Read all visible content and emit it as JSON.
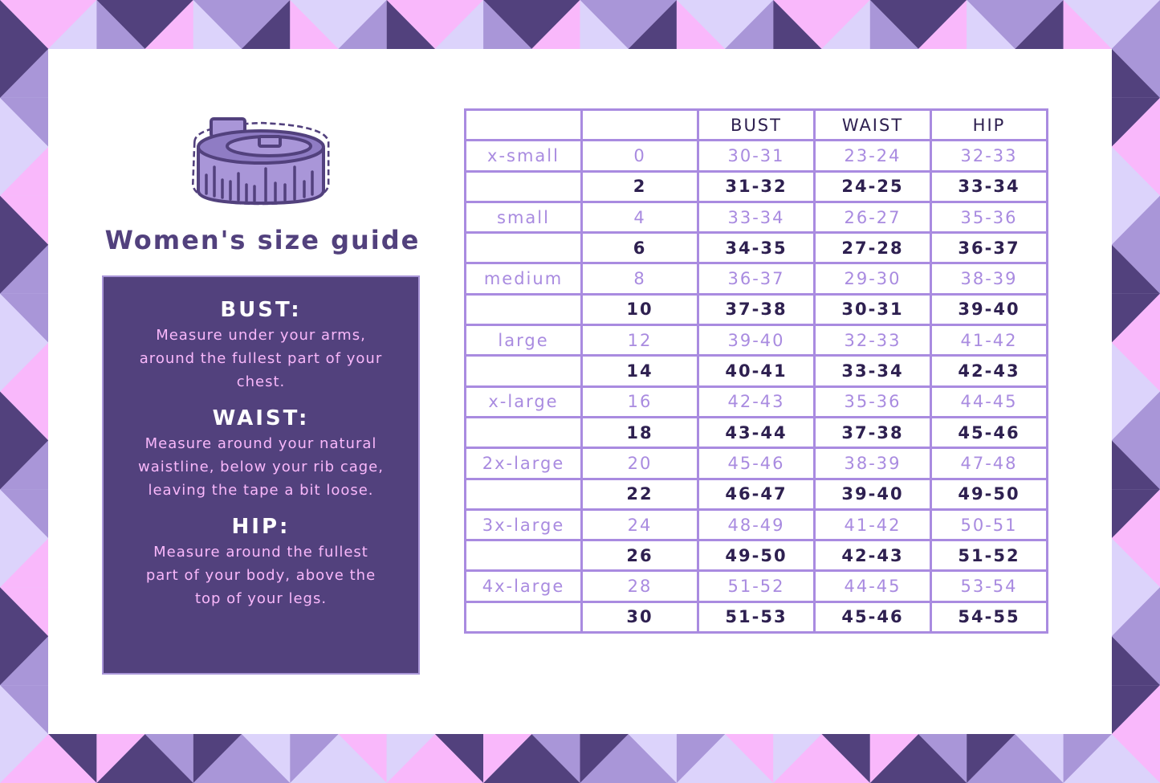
{
  "title": "Women's size guide",
  "colors": {
    "pink": "#f9b8fb",
    "lavender": "#dcd3fb",
    "mid_purple": "#a996d8",
    "dark_purple": "#52417d",
    "table_line": "#a98be0"
  },
  "icon": "measuring-tape-icon",
  "instructions": [
    {
      "heading": "BUST:",
      "text": "Measure under your arms, around the fullest part of your chest."
    },
    {
      "heading": "WAIST:",
      "text": "Measure around your natural waistline, below your rib cage, leaving the tape a bit loose."
    },
    {
      "heading": "HIP:",
      "text": "Measure around the fullest part of your body, above the top of your legs."
    }
  ],
  "table": {
    "headers": [
      "",
      "",
      "BUST",
      "WAIST",
      "HIP"
    ],
    "rows": [
      [
        "x-small",
        "0",
        "30-31",
        "23-24",
        "32-33"
      ],
      [
        "",
        "2",
        "31-32",
        "24-25",
        "33-34"
      ],
      [
        "small",
        "4",
        "33-34",
        "26-27",
        "35-36"
      ],
      [
        "",
        "6",
        "34-35",
        "27-28",
        "36-37"
      ],
      [
        "medium",
        "8",
        "36-37",
        "29-30",
        "38-39"
      ],
      [
        "",
        "10",
        "37-38",
        "30-31",
        "39-40"
      ],
      [
        "large",
        "12",
        "39-40",
        "32-33",
        "41-42"
      ],
      [
        "",
        "14",
        "40-41",
        "33-34",
        "42-43"
      ],
      [
        "x-large",
        "16",
        "42-43",
        "35-36",
        "44-45"
      ],
      [
        "",
        "18",
        "43-44",
        "37-38",
        "45-46"
      ],
      [
        "2x-large",
        "20",
        "45-46",
        "38-39",
        "47-48"
      ],
      [
        "",
        "22",
        "46-47",
        "39-40",
        "49-50"
      ],
      [
        "3x-large",
        "24",
        "48-49",
        "41-42",
        "50-51"
      ],
      [
        "",
        "26",
        "49-50",
        "42-43",
        "51-52"
      ],
      [
        "4x-large",
        "28",
        "51-52",
        "44-45",
        "53-54"
      ],
      [
        "",
        "30",
        "51-53",
        "45-46",
        "54-55"
      ]
    ]
  }
}
